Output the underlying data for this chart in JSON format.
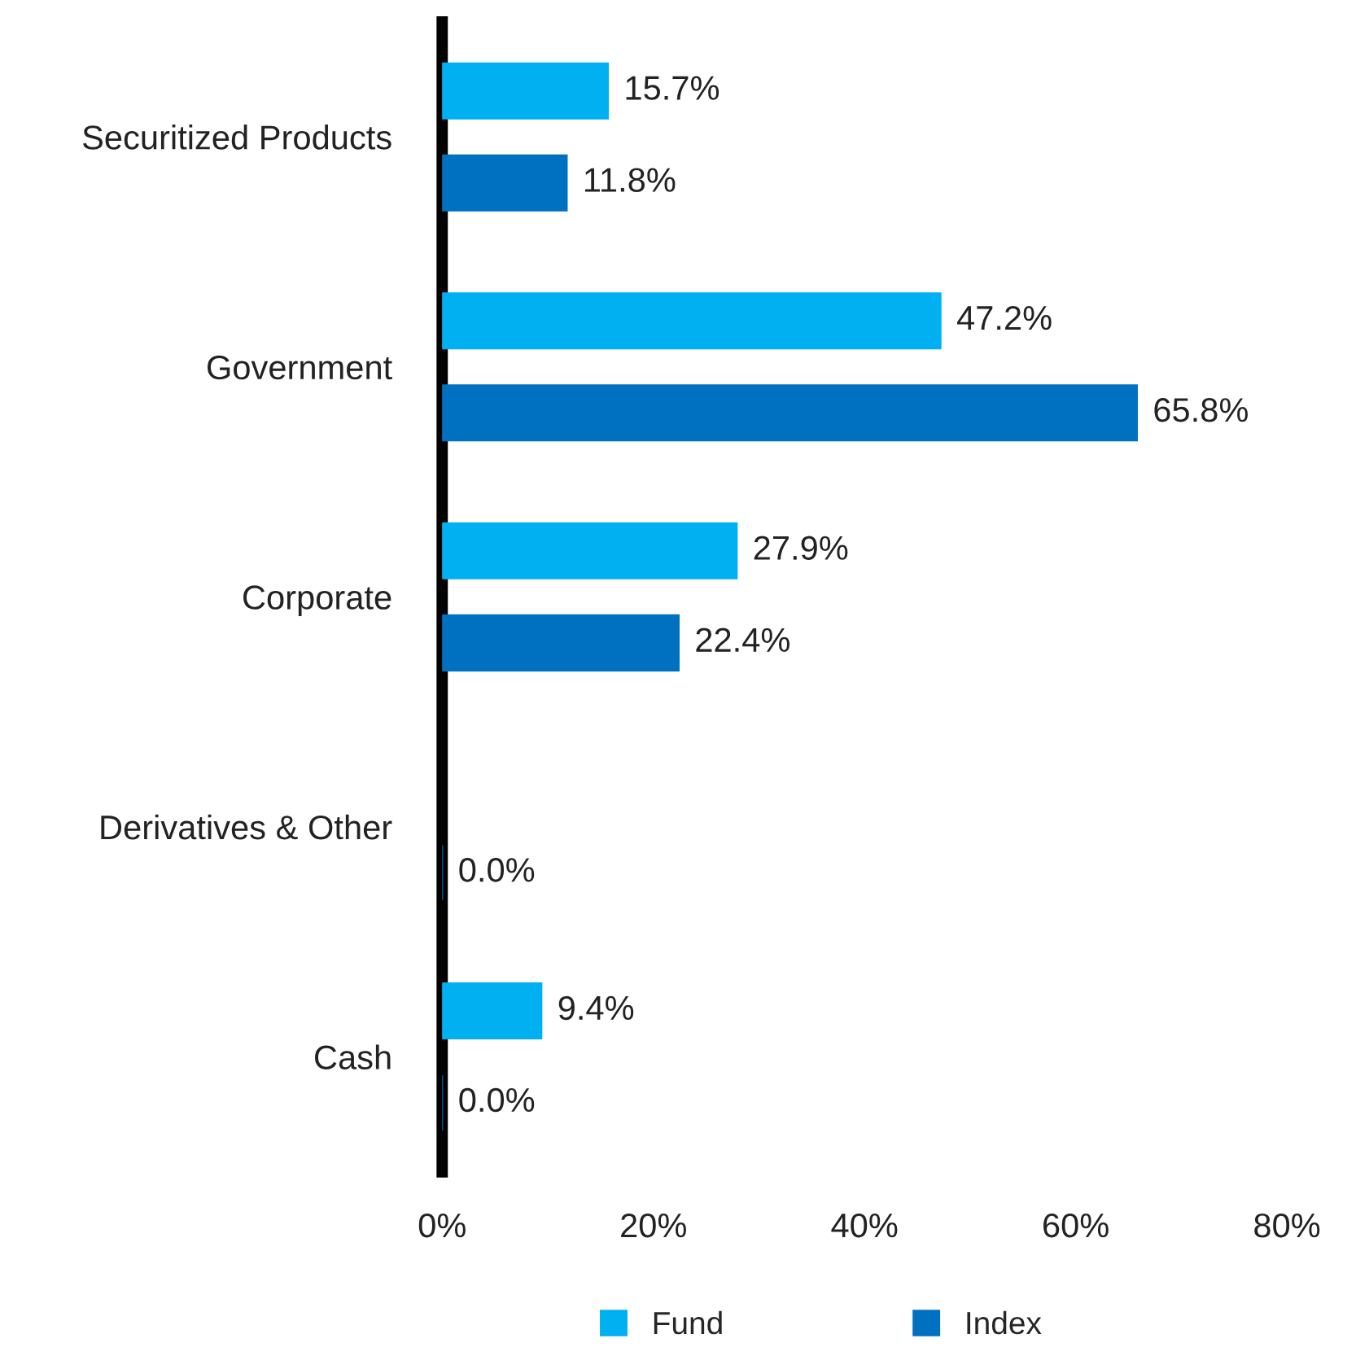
{
  "chart_data": {
    "type": "bar",
    "orientation": "horizontal",
    "categories": [
      "Securitized Products",
      "Government",
      "Corporate",
      "Derivatives & Other",
      "Cash"
    ],
    "series": [
      {
        "name": "Fund",
        "color": "#00b0f0",
        "values": [
          15.7,
          47.2,
          27.9,
          null,
          9.4
        ],
        "value_labels": [
          "15.7%",
          "47.2%",
          "27.9%",
          null,
          "9.4%"
        ]
      },
      {
        "name": "Index",
        "color": "#0070c0",
        "values": [
          11.8,
          65.8,
          22.4,
          0.0,
          0.0
        ],
        "value_labels": [
          "11.8%",
          "65.8%",
          "22.4%",
          "0.0%",
          "0.0%"
        ]
      }
    ],
    "xlim": [
      0,
      80
    ],
    "xticks": [
      {
        "value": 0,
        "label": "0%"
      },
      {
        "value": 20,
        "label": "20%"
      },
      {
        "value": 40,
        "label": "40%"
      },
      {
        "value": 60,
        "label": "60%"
      },
      {
        "value": 80,
        "label": "80%"
      }
    ],
    "grid": false,
    "legend": "bottom"
  }
}
